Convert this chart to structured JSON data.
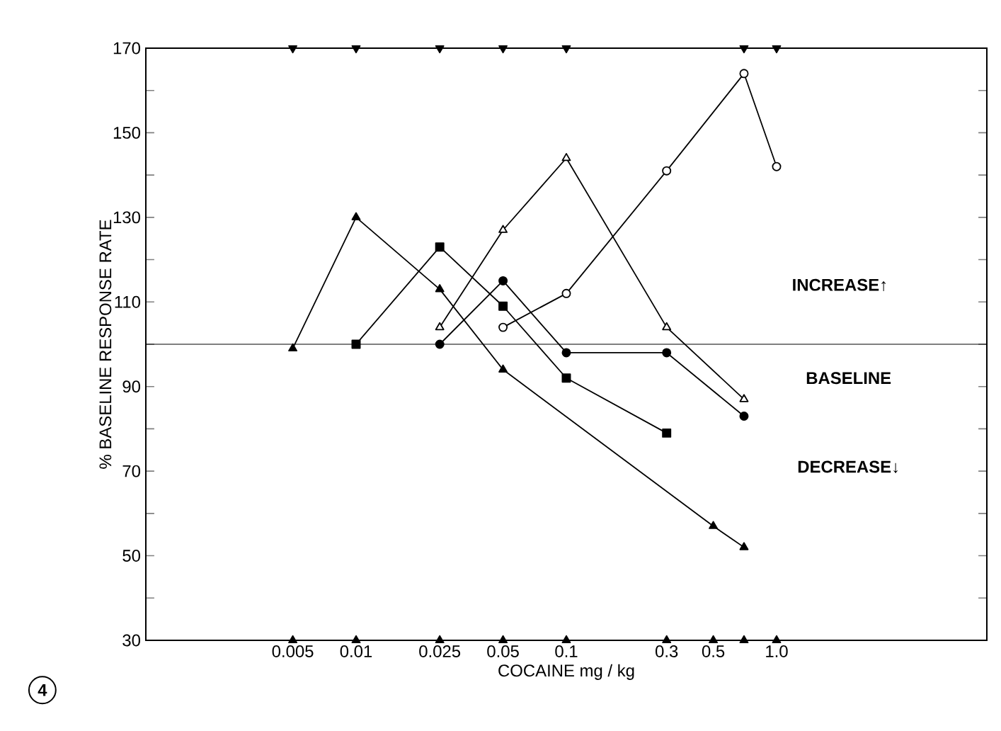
{
  "chart_data": {
    "type": "line",
    "xlabel": "COCAINE mg / kg",
    "ylabel": "% BASELINE RESPONSE RATE",
    "log": "x",
    "xlim": [
      0.001,
      10
    ],
    "ylim": [
      30,
      170
    ],
    "xticks": [
      0.005,
      0.01,
      0.025,
      0.05,
      0.1,
      0.3,
      0.5,
      {
        "value": 1,
        "label": "1.0"
      }
    ],
    "yticks": [
      30,
      {
        "value": 40,
        "label": null
      },
      50,
      {
        "value": 60,
        "label": null
      },
      70,
      {
        "value": 80,
        "label": null
      },
      90,
      {
        "value": 100,
        "label": null
      },
      110,
      {
        "value": 120,
        "label": null
      },
      130,
      {
        "value": 140,
        "label": null
      },
      150,
      {
        "value": 160,
        "label": null
      },
      170
    ],
    "series": [
      {
        "color": "#000000",
        "marker": "triangle",
        "x": [
          0.005,
          0.01,
          0.025,
          0.05,
          0.5,
          0.7
        ],
        "values": [
          99,
          130,
          113,
          94,
          57,
          52
        ]
      },
      {
        "color": "#000000",
        "marker": "triangle",
        "colors": [
          "#ffffff",
          "#ffffff",
          "#ffffff",
          "#ffffff",
          "#ffffff"
        ],
        "x": [
          0.025,
          0.05,
          0.1,
          0.3,
          0.7
        ],
        "values": [
          104,
          127,
          144,
          104,
          87
        ]
      },
      {
        "color": "#000000",
        "marker": "circle",
        "x": [
          0.025,
          0.05,
          0.1,
          0.3,
          0.7
        ],
        "values": [
          100,
          115,
          98,
          98,
          83
        ]
      },
      {
        "color": "#000000",
        "marker": "square",
        "x": [
          0.01,
          0.025,
          0.05,
          0.1,
          0.3
        ],
        "values": [
          100,
          123,
          109,
          92,
          79
        ]
      },
      {
        "color": "#000000",
        "marker": "circle",
        "colors": [
          "#ffffff",
          "#ffffff",
          "#ffffff",
          "#ffffff",
          "#ffffff"
        ],
        "x": [
          0.05,
          0.1,
          0.3,
          0.7,
          1.0
        ],
        "values": [
          104,
          112,
          141,
          164,
          142
        ]
      },
      {
        "type": "scatter",
        "color": "#000000",
        "marker": "triangle-down",
        "x": [
          0.005,
          0.01,
          0.025,
          0.05,
          0.1,
          0.7,
          1.0
        ],
        "values": [
          170,
          170,
          170,
          170,
          170,
          170,
          170
        ]
      },
      {
        "type": "scatter",
        "color": "#000000",
        "marker": "triangle",
        "x": [
          0.005,
          0.01,
          0.025,
          0.05,
          0.1,
          0.3,
          0.5,
          0.7,
          1.0
        ],
        "values": [
          30,
          30,
          30,
          30,
          30,
          30,
          30,
          30,
          30
        ]
      }
    ],
    "ref_lines": [
      {
        "axis": "y",
        "value": 100,
        "label": "BASELINE",
        "color": "#000000"
      }
    ],
    "annotations": [
      "INCREASE↑",
      "DECREASE↓",
      "4"
    ]
  }
}
